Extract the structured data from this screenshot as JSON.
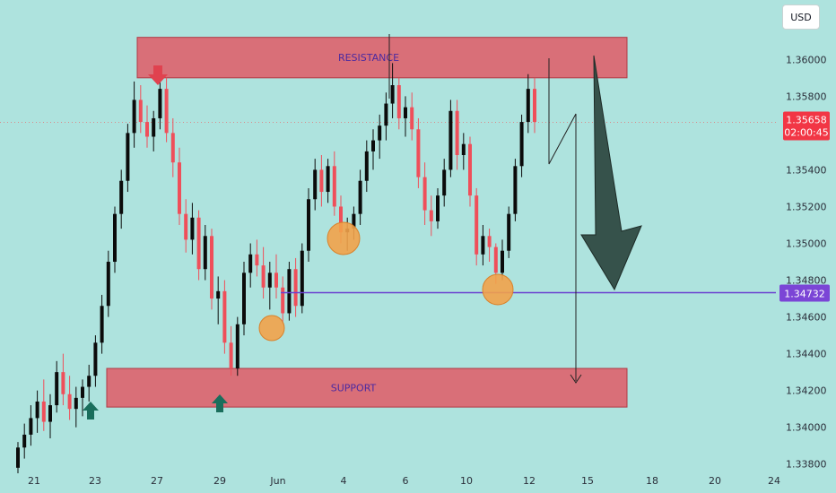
{
  "currency_button": "USD",
  "chart_data": {
    "type": "candlestick",
    "y_ticks": [
      "1.36000",
      "1.35800",
      "1.35600",
      "1.35400",
      "1.35200",
      "1.35000",
      "1.34800",
      "1.34600",
      "1.34400",
      "1.34200",
      "1.34000",
      "1.33800"
    ],
    "x_ticks": [
      "21",
      "23",
      "27",
      "29",
      "Jun",
      "4",
      "6",
      "10",
      "12",
      "15",
      "18",
      "20",
      "24"
    ],
    "ylim": [
      1.3375,
      1.3625
    ],
    "zones": [
      {
        "label": "RESISTANCE",
        "y_low": 1.359,
        "y_high": 1.3612,
        "color": "#e05a66"
      },
      {
        "label": "SUPPORT",
        "y_low": 1.3411,
        "y_high": 1.3432,
        "color": "#e05a66"
      }
    ],
    "price_badge": {
      "price": "1.35658",
      "timer": "02:00:45",
      "color": "#f23645"
    },
    "level_badge": {
      "price": "1.34732",
      "value": 1.34732,
      "color": "#7b45d6"
    },
    "candles_ohlc": [
      [
        1.3378,
        1.3392,
        1.3375,
        1.3389
      ],
      [
        1.3389,
        1.3402,
        1.3383,
        1.3396
      ],
      [
        1.3396,
        1.3412,
        1.339,
        1.3405
      ],
      [
        1.3405,
        1.342,
        1.3397,
        1.3414
      ],
      [
        1.3414,
        1.3426,
        1.3398,
        1.3403
      ],
      [
        1.3403,
        1.3418,
        1.3394,
        1.3412
      ],
      [
        1.3412,
        1.3436,
        1.3408,
        1.343
      ],
      [
        1.343,
        1.344,
        1.3412,
        1.3418
      ],
      [
        1.3418,
        1.3428,
        1.3404,
        1.341
      ],
      [
        1.341,
        1.3422,
        1.34,
        1.3416
      ],
      [
        1.3416,
        1.3426,
        1.3406,
        1.3422
      ],
      [
        1.3422,
        1.3434,
        1.3414,
        1.3428
      ],
      [
        1.3428,
        1.345,
        1.3422,
        1.3446
      ],
      [
        1.3446,
        1.3472,
        1.344,
        1.3466
      ],
      [
        1.3466,
        1.3496,
        1.346,
        1.349
      ],
      [
        1.349,
        1.352,
        1.3484,
        1.3516
      ],
      [
        1.3516,
        1.354,
        1.3508,
        1.3534
      ],
      [
        1.3534,
        1.3565,
        1.3528,
        1.356
      ],
      [
        1.356,
        1.3588,
        1.3552,
        1.3578
      ],
      [
        1.3578,
        1.3586,
        1.356,
        1.3566
      ],
      [
        1.3566,
        1.3575,
        1.3552,
        1.3558
      ],
      [
        1.3558,
        1.3572,
        1.355,
        1.3568
      ],
      [
        1.3568,
        1.359,
        1.3562,
        1.3584
      ],
      [
        1.3584,
        1.359,
        1.3555,
        1.356
      ],
      [
        1.356,
        1.3568,
        1.3536,
        1.3544
      ],
      [
        1.3544,
        1.3552,
        1.351,
        1.3516
      ],
      [
        1.3516,
        1.3524,
        1.3495,
        1.3502
      ],
      [
        1.3502,
        1.3522,
        1.3494,
        1.3514
      ],
      [
        1.3514,
        1.3518,
        1.348,
        1.3486
      ],
      [
        1.3486,
        1.351,
        1.348,
        1.3504
      ],
      [
        1.3504,
        1.3508,
        1.3464,
        1.347
      ],
      [
        1.347,
        1.3482,
        1.3456,
        1.3474
      ],
      [
        1.3474,
        1.348,
        1.344,
        1.3446
      ],
      [
        1.3446,
        1.3455,
        1.3428,
        1.3432
      ],
      [
        1.3432,
        1.346,
        1.3428,
        1.3456
      ],
      [
        1.3456,
        1.349,
        1.345,
        1.3484
      ],
      [
        1.3484,
        1.35,
        1.3476,
        1.3494
      ],
      [
        1.3494,
        1.3502,
        1.3482,
        1.3488
      ],
      [
        1.3488,
        1.3498,
        1.347,
        1.3476
      ],
      [
        1.3476,
        1.349,
        1.3464,
        1.3484
      ],
      [
        1.3484,
        1.3494,
        1.347,
        1.3476
      ],
      [
        1.3476,
        1.3482,
        1.3456,
        1.3462
      ],
      [
        1.3462,
        1.349,
        1.3458,
        1.3486
      ],
      [
        1.3486,
        1.3492,
        1.346,
        1.3466
      ],
      [
        1.3466,
        1.35,
        1.3462,
        1.3496
      ],
      [
        1.3496,
        1.353,
        1.349,
        1.3524
      ],
      [
        1.3524,
        1.3546,
        1.3518,
        1.354
      ],
      [
        1.354,
        1.3548,
        1.352,
        1.3528
      ],
      [
        1.3528,
        1.3546,
        1.3522,
        1.3542
      ],
      [
        1.3542,
        1.355,
        1.3515,
        1.352
      ],
      [
        1.352,
        1.3526,
        1.35,
        1.3506
      ],
      [
        1.3506,
        1.3514,
        1.3496,
        1.3508
      ],
      [
        1.3508,
        1.352,
        1.3502,
        1.3516
      ],
      [
        1.3516,
        1.354,
        1.351,
        1.3534
      ],
      [
        1.3534,
        1.3556,
        1.3528,
        1.355
      ],
      [
        1.355,
        1.3562,
        1.354,
        1.3556
      ],
      [
        1.3556,
        1.357,
        1.3546,
        1.3564
      ],
      [
        1.3564,
        1.3582,
        1.3556,
        1.3576
      ],
      [
        1.3576,
        1.3598,
        1.3568,
        1.3586
      ],
      [
        1.3586,
        1.359,
        1.3562,
        1.3568
      ],
      [
        1.3568,
        1.358,
        1.3558,
        1.3574
      ],
      [
        1.3574,
        1.3582,
        1.3556,
        1.3562
      ],
      [
        1.3562,
        1.3568,
        1.353,
        1.3536
      ],
      [
        1.3536,
        1.3544,
        1.351,
        1.3518
      ],
      [
        1.3518,
        1.3526,
        1.3504,
        1.3512
      ],
      [
        1.3512,
        1.353,
        1.3508,
        1.3526
      ],
      [
        1.3526,
        1.3546,
        1.352,
        1.354
      ],
      [
        1.354,
        1.3578,
        1.3536,
        1.3572
      ],
      [
        1.3572,
        1.3578,
        1.354,
        1.3548
      ],
      [
        1.3548,
        1.356,
        1.354,
        1.3554
      ],
      [
        1.3554,
        1.3558,
        1.352,
        1.3526
      ],
      [
        1.3526,
        1.353,
        1.3488,
        1.3494
      ],
      [
        1.3494,
        1.351,
        1.3488,
        1.3504
      ],
      [
        1.3504,
        1.3508,
        1.349,
        1.3498
      ],
      [
        1.3498,
        1.35,
        1.3478,
        1.3484
      ],
      [
        1.3484,
        1.3502,
        1.348,
        1.3496
      ],
      [
        1.3496,
        1.352,
        1.3492,
        1.3516
      ],
      [
        1.3516,
        1.3546,
        1.3512,
        1.3542
      ],
      [
        1.3542,
        1.357,
        1.3536,
        1.3566
      ],
      [
        1.3566,
        1.3592,
        1.356,
        1.3584
      ],
      [
        1.3584,
        1.359,
        1.356,
        1.3566
      ]
    ]
  }
}
